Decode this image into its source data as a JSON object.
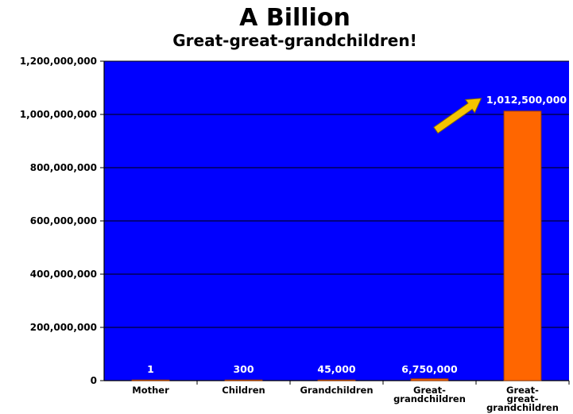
{
  "chart_data": {
    "type": "bar",
    "title": "A Billion",
    "subtitle": "Great-great-grandchildren!",
    "xlabel": "",
    "ylabel": "",
    "categories": [
      "Mother",
      "Children",
      "Grandchildren",
      "Great-grandchildren",
      "Great-great-grandchildren"
    ],
    "category_label_lines": [
      [
        "Mother"
      ],
      [
        "Children"
      ],
      [
        "Grandchildren"
      ],
      [
        "Great-",
        "grandchildren"
      ],
      [
        "Great-",
        "great-",
        "grandchildren"
      ]
    ],
    "values": [
      1,
      300,
      45000,
      6750000,
      1012500000
    ],
    "data_labels": [
      "1",
      "300",
      "45,000",
      "6,750,000",
      "1,012,500,000"
    ],
    "ylim": [
      0,
      1200000000
    ],
    "yticks": [
      0,
      200000000,
      400000000,
      600000000,
      800000000,
      1000000000,
      1200000000
    ],
    "ytick_labels": [
      "0",
      "200,000,000",
      "400,000,000",
      "600,000,000",
      "800,000,000",
      "1,000,000,000",
      "1,200,000,000"
    ],
    "grid": true,
    "legend": "none",
    "annotation": "arrow pointing to the final bar's value label",
    "colors": {
      "plot_background": "#0000ff",
      "bar": "#ff6600",
      "bar_edge": "#a03c00",
      "gridline": "#000000",
      "data_label": "#ffffff",
      "arrow": "#f5c400"
    }
  }
}
